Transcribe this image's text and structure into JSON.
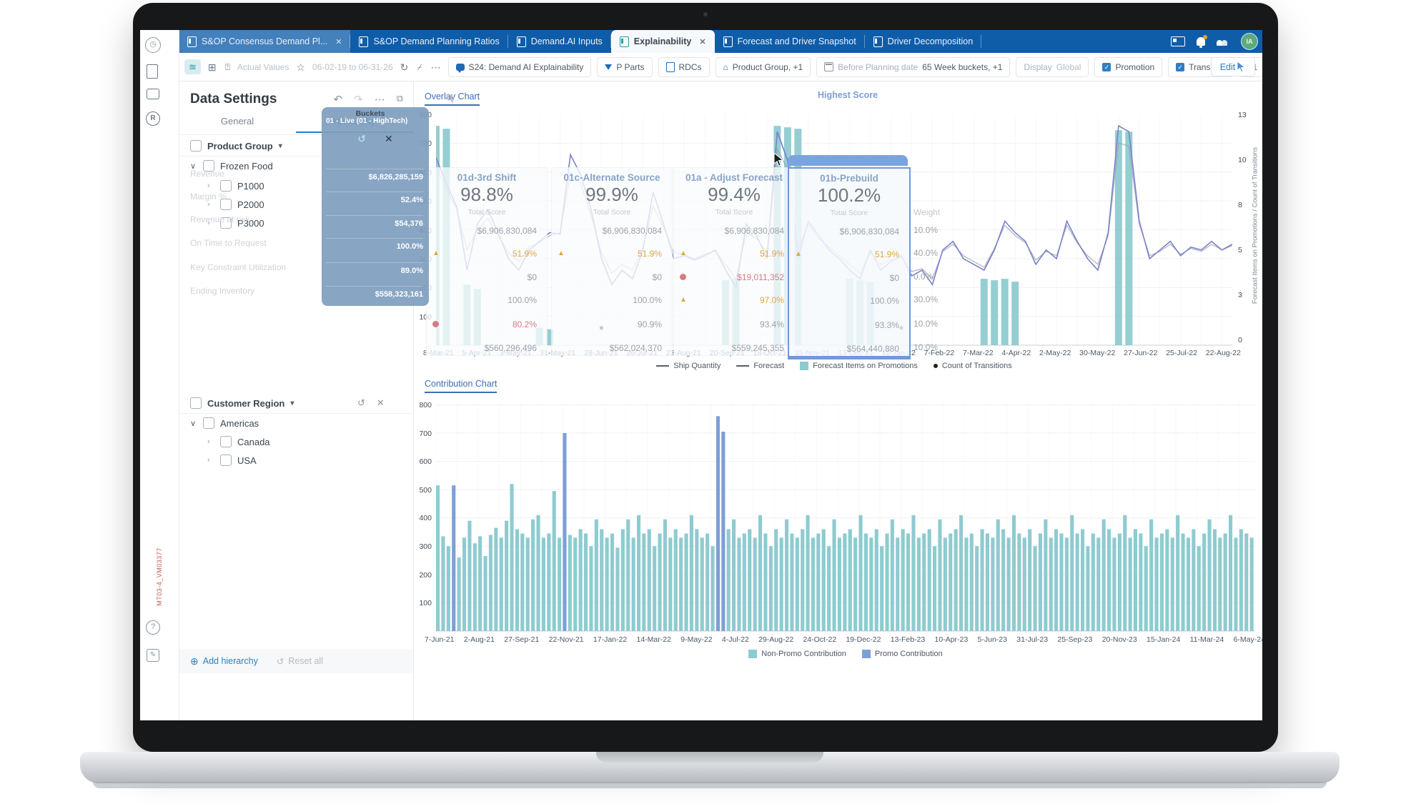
{
  "tabbar": {
    "tabs": [
      {
        "label": "S&OP Consensus Demand Pl...",
        "state": "highlight",
        "closable": true
      },
      {
        "label": "S&OP Demand Planning Ratios",
        "state": "normal",
        "closable": false
      },
      {
        "label": "Demand.AI Inputs",
        "state": "normal",
        "closable": false
      },
      {
        "label": "Explainability",
        "state": "active",
        "closable": true
      },
      {
        "label": "Forecast and Driver Snapshot",
        "state": "normal",
        "closable": false
      },
      {
        "label": "Driver Decomposition",
        "state": "normal",
        "closable": false
      }
    ],
    "avatar_initials": "IA"
  },
  "toolbar": {
    "ghost_actual": "Actual Values",
    "ghost_range": "06-02-19 to 06-31-26",
    "chips": [
      {
        "icon": "chat-icon",
        "label": "S24: Demand AI Explainability"
      },
      {
        "icon": "funnel-icon",
        "label": "P Parts"
      },
      {
        "icon": "box-icon",
        "label": "RDCs"
      },
      {
        "icon": "hierarchy-icon",
        "label": "Product Group, +1"
      },
      {
        "icon": "calendar-icon",
        "prefix": "Before Planning date",
        "label": "65 Week buckets, +1"
      },
      {
        "prefix": "Display",
        "label": "Global",
        "dim": true
      },
      {
        "icon": "checkbox-icon",
        "label": "Promotion"
      },
      {
        "icon": "checkbox-icon",
        "label": "Transition"
      },
      {
        "label": "+1"
      }
    ],
    "edit_label": "Edit"
  },
  "sidebar": {
    "title": "Data Settings",
    "tabs": [
      {
        "label": "General",
        "active": false
      },
      {
        "label": "Hierarchy",
        "active": true
      }
    ],
    "product_group": {
      "label": "Product Group",
      "tree": [
        {
          "label": "Frozen Food",
          "expanded": true,
          "level": 0
        },
        {
          "label": "P1000",
          "expanded": false,
          "level": 1
        },
        {
          "label": "P2000",
          "expanded": false,
          "level": 1
        },
        {
          "label": "P3000",
          "expanded": false,
          "level": 1
        }
      ],
      "ghost_rows": [
        "Revenue",
        "Margin %",
        "Revenue at risk",
        "On Time to Request",
        "Key Constraint Utilization",
        "Ending Inventory"
      ]
    },
    "customer_region": {
      "label": "Customer Region",
      "tree": [
        {
          "label": "Americas",
          "expanded": true,
          "level": 0
        },
        {
          "label": "Canada",
          "expanded": false,
          "level": 1
        },
        {
          "label": "USA",
          "expanded": false,
          "level": 1
        }
      ]
    },
    "footer": {
      "add_label": "Add hierarchy",
      "reset_label": "Reset all"
    },
    "vertical_tag": "MT03-4_VM03377"
  },
  "overlay_panel": {
    "ghost_header": "Buckets",
    "title": "01 - Live (01 - HighTech)",
    "values": [
      "$6,826,285,159",
      "52.4%",
      "$54,376",
      "100.0%",
      "89.0%",
      "$558,323,161"
    ]
  },
  "scorecards": {
    "highest_label": "Highest Score",
    "weight_header": "Weight",
    "weights": [
      "10.0%",
      "40.0%",
      "0.0%",
      "30.0%",
      "10.0%",
      "10.0%"
    ],
    "columns": [
      {
        "name": "01d-3rd Shift",
        "score": "98.8%",
        "caption": "Total Score",
        "rows": [
          {
            "v": "$6,906,830,084"
          },
          {
            "v": "51.9%",
            "flag": "warn"
          },
          {
            "v": "$0"
          },
          {
            "v": "100.0%"
          },
          {
            "v": "80.2%",
            "flag": "bad"
          },
          {
            "v": "$560,296,496"
          }
        ]
      },
      {
        "name": "01c-Alternate Source",
        "score": "99.9%",
        "caption": "Total Score",
        "rows": [
          {
            "v": "$6,906,830,084"
          },
          {
            "v": "51.9%",
            "flag": "warn"
          },
          {
            "v": "$0"
          },
          {
            "v": "100.0%"
          },
          {
            "v": "90.9%"
          },
          {
            "v": "$562,024,370"
          }
        ]
      },
      {
        "name": "01a - Adjust Forecast",
        "score": "99.4%",
        "caption": "Total Score",
        "rows": [
          {
            "v": "$6,906,830,084"
          },
          {
            "v": "51.9%",
            "flag": "warn"
          },
          {
            "v": "$19,011,352",
            "flag": "bad"
          },
          {
            "v": "97.0%",
            "flag": "warn"
          },
          {
            "v": "93.4%"
          },
          {
            "v": "$559,245,355"
          }
        ]
      },
      {
        "name": "01b-Prebuild",
        "score": "100.2%",
        "caption": "Total Score",
        "highlight": true,
        "rows": [
          {
            "v": "$6,906,830,084"
          },
          {
            "v": "51.9%",
            "flag": "warn"
          },
          {
            "v": "$0"
          },
          {
            "v": "100.0%"
          },
          {
            "v": "93.3%"
          },
          {
            "v": "$564,440,880"
          }
        ]
      }
    ]
  },
  "chart_data": [
    {
      "type": "line",
      "title": "Overlay Chart",
      "ylabel_right": "Forecast Items on Promotions / Count of Transitions",
      "ylim": [
        0,
        800
      ],
      "yticks_left": [
        800,
        700,
        600,
        500,
        400,
        300,
        200,
        100
      ],
      "yticks_right": [
        13,
        10,
        8,
        5,
        3,
        0
      ],
      "grid": true,
      "legend_position": "bottom",
      "x": [
        "8-Mar-21",
        "5-Apr-21",
        "3-May-21",
        "31-May-21",
        "28-Jun-21",
        "26-Jul-21",
        "23-Aug-21",
        "20-Sep-21",
        "18-Oct-21",
        "15-Nov-21",
        "13-Dec-21",
        "10-Jan-22",
        "7-Feb-22",
        "7-Mar-22",
        "4-Apr-22",
        "2-May-22",
        "30-May-22",
        "27-Jun-22",
        "25-Jul-22",
        "22-Aug-22"
      ],
      "series": [
        {
          "name": "Ship Quantity",
          "kind": "line",
          "values": [
            650,
            560,
            480,
            260,
            420,
            470,
            390,
            300,
            260,
            330,
            360,
            390,
            385,
            660,
            590,
            470,
            300,
            210,
            260,
            230,
            330,
            530,
            420,
            300,
            310,
            295,
            310,
            330,
            260,
            200,
            420,
            380,
            300,
            740,
            640,
            300,
            430,
            380,
            330,
            300,
            260,
            230,
            330,
            260,
            290,
            310,
            240,
            260,
            210,
            330,
            360,
            300,
            280,
            260,
            330,
            430,
            390,
            360,
            280,
            330,
            300,
            430,
            360,
            300,
            260,
            390,
            760,
            740,
            430,
            300,
            330,
            360,
            310,
            340,
            330,
            360,
            330,
            350
          ]
        },
        {
          "name": "Forecast",
          "kind": "line",
          "values": [
            620,
            540,
            470,
            330,
            400,
            440,
            380,
            320,
            290,
            340,
            355,
            380,
            390,
            600,
            560,
            450,
            320,
            250,
            280,
            260,
            340,
            480,
            410,
            320,
            315,
            300,
            315,
            325,
            280,
            230,
            390,
            370,
            320,
            680,
            610,
            330,
            420,
            370,
            340,
            310,
            280,
            250,
            320,
            280,
            295,
            305,
            255,
            265,
            230,
            325,
            350,
            310,
            290,
            270,
            335,
            415,
            380,
            355,
            295,
            325,
            310,
            415,
            355,
            310,
            280,
            380,
            700,
            690,
            420,
            310,
            325,
            350,
            315,
            335,
            325,
            350,
            330,
            345
          ]
        },
        {
          "name": "Forecast Items on Promotions",
          "kind": "bar",
          "points": [
            {
              "i": 0,
              "v": 760
            },
            {
              "i": 1,
              "v": 750
            },
            {
              "i": 3,
              "v": 210
            },
            {
              "i": 4,
              "v": 195
            },
            {
              "i": 10,
              "v": 60
            },
            {
              "i": 11,
              "v": 55
            },
            {
              "i": 28,
              "v": 225
            },
            {
              "i": 29,
              "v": 230
            },
            {
              "i": 33,
              "v": 760
            },
            {
              "i": 34,
              "v": 755
            },
            {
              "i": 35,
              "v": 750
            },
            {
              "i": 40,
              "v": 230
            },
            {
              "i": 41,
              "v": 225
            },
            {
              "i": 42,
              "v": 220
            },
            {
              "i": 53,
              "v": 230
            },
            {
              "i": 54,
              "v": 225
            },
            {
              "i": 55,
              "v": 230
            },
            {
              "i": 56,
              "v": 220
            },
            {
              "i": 66,
              "v": 745
            },
            {
              "i": 67,
              "v": 740
            }
          ]
        },
        {
          "name": "Count of Transitions",
          "kind": "dot",
          "points": [
            {
              "i": 16,
              "v": 60
            },
            {
              "i": 45,
              "v": 60
            }
          ]
        }
      ]
    },
    {
      "type": "bar",
      "title": "Contribution Chart",
      "ylim": [
        0,
        800
      ],
      "yticks_left": [
        800,
        700,
        600,
        500,
        400,
        300,
        200,
        100
      ],
      "grid": true,
      "legend_position": "bottom",
      "x": [
        "7-Jun-21",
        "2-Aug-21",
        "27-Sep-21",
        "22-Nov-21",
        "17-Jan-22",
        "14-Mar-22",
        "9-May-22",
        "4-Jul-22",
        "29-Aug-22",
        "24-Oct-22",
        "19-Dec-22",
        "13-Feb-23",
        "10-Apr-23",
        "5-Jun-23",
        "31-Jul-23",
        "25-Sep-23",
        "20-Nov-23",
        "15-Jan-24",
        "11-Mar-24",
        "6-May-24"
      ],
      "series": [
        {
          "name": "Non-Promo Contribution",
          "kind": "bar",
          "values": [
            515,
            335,
            300,
            515,
            260,
            330,
            390,
            310,
            335,
            265,
            340,
            365,
            330,
            390,
            520,
            360,
            345,
            330,
            395,
            410,
            330,
            345,
            495,
            330,
            700,
            340,
            330,
            360,
            345,
            300,
            395,
            360,
            330,
            345,
            295,
            360,
            395,
            330,
            410,
            345,
            360,
            300,
            345,
            395,
            330,
            360,
            330,
            345,
            410,
            360,
            330,
            345,
            300,
            760,
            705,
            360,
            395,
            330,
            345,
            360,
            330,
            410,
            345,
            300,
            360,
            330,
            395,
            345,
            330,
            360,
            410,
            330,
            345,
            360,
            300,
            395,
            330,
            345,
            360,
            330,
            410,
            345,
            330,
            360,
            300,
            345,
            395,
            330,
            360,
            345,
            410,
            330,
            345,
            360,
            300,
            395,
            330,
            345,
            360,
            410,
            330,
            345,
            300,
            360,
            345,
            330,
            395,
            360,
            330,
            410,
            345,
            330,
            360,
            300,
            345,
            395,
            330,
            360,
            345,
            330,
            410,
            345,
            360,
            300,
            345,
            330,
            395,
            360,
            330,
            345,
            410,
            330,
            360,
            345,
            300,
            395,
            330,
            345,
            360,
            330,
            410,
            345,
            330,
            360,
            300,
            345,
            395,
            360,
            330,
            345,
            410,
            330,
            360,
            345,
            330,
            340
          ]
        },
        {
          "name": "Promo Contribution",
          "kind": "promo",
          "indices": [
            3,
            24,
            53,
            54
          ]
        }
      ]
    }
  ],
  "overlay_legend": [
    {
      "swatch": "line",
      "label": "Ship Quantity"
    },
    {
      "swatch": "line",
      "label": "Forecast"
    },
    {
      "swatch": "teal",
      "label": "Forecast Items on Promotions"
    },
    {
      "swatch": "dot",
      "label": "Count of Transitions"
    }
  ],
  "contrib_legend": [
    {
      "swatch": "teal",
      "label": "Non-Promo Contribution"
    },
    {
      "swatch": "blue",
      "label": "Promo Contribution"
    }
  ],
  "colors": {
    "tabbar_blue": "#0f5da9",
    "accent_blue": "#2f7fc1",
    "teal_bar": "#8ecbd0",
    "promo_blue": "#7d9fd6",
    "ship_line": "#7b80c9",
    "forecast_line": "#98a0b0",
    "warn_orange": "#e0a73f",
    "bad_red": "#d87a84",
    "highlight_blue": "#7ba3dd"
  }
}
